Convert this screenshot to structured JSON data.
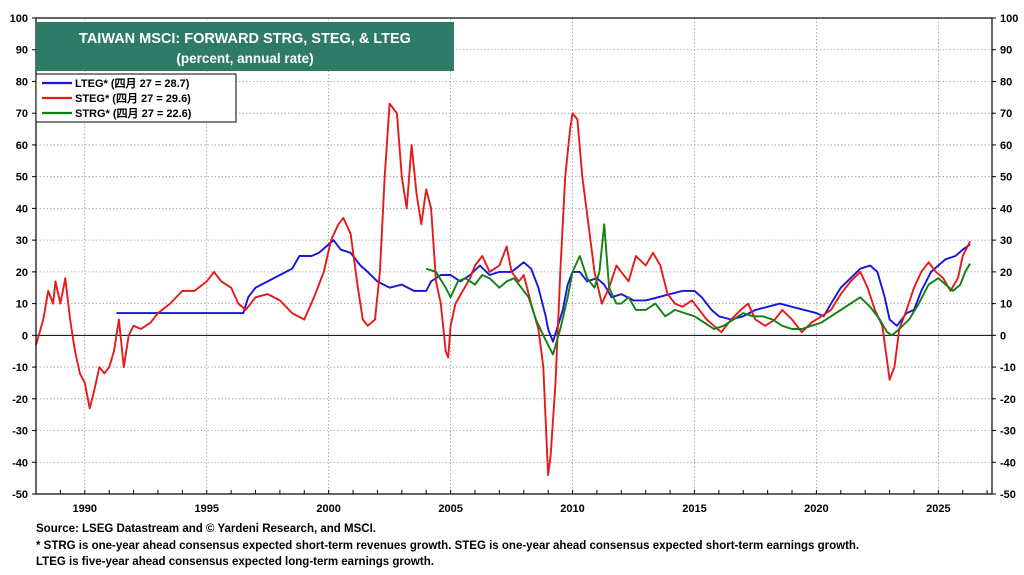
{
  "chart_data": {
    "type": "line",
    "title": "TAIWAN MSCI: FORWARD STRG, STEG, & LTEG",
    "subtitle": "(percent, annual rate)",
    "xlim": [
      1988.0,
      2027.2
    ],
    "ylim": [
      -50,
      100
    ],
    "y_ticks": [
      100,
      90,
      80,
      70,
      60,
      50,
      40,
      30,
      20,
      10,
      0,
      -10,
      -20,
      -30,
      -40,
      -50
    ],
    "x_ticks": [
      1990,
      1995,
      2000,
      2005,
      2010,
      2015,
      2020,
      2025
    ],
    "grid": true,
    "zero_line": true,
    "legend_position": "top-left",
    "series": [
      {
        "name": "LTEG",
        "label": "LTEG* (四月 27 = 28.7)",
        "color": "#1515e0",
        "points": [
          [
            1991.3,
            7
          ],
          [
            1992.0,
            7
          ],
          [
            1996.5,
            7
          ],
          [
            1996.7,
            12
          ],
          [
            1997.0,
            15
          ],
          [
            1997.5,
            17
          ],
          [
            1998.0,
            19
          ],
          [
            1998.5,
            21
          ],
          [
            1998.8,
            25
          ],
          [
            1999.3,
            25
          ],
          [
            1999.6,
            26
          ],
          [
            1999.9,
            28
          ],
          [
            2000.2,
            30
          ],
          [
            2000.5,
            27
          ],
          [
            2000.9,
            26
          ],
          [
            2001.3,
            22
          ],
          [
            2001.6,
            20
          ],
          [
            2002.0,
            17
          ],
          [
            2002.5,
            15
          ],
          [
            2003.0,
            16
          ],
          [
            2003.5,
            14
          ],
          [
            2004.0,
            14
          ],
          [
            2004.2,
            17
          ],
          [
            2004.6,
            19
          ],
          [
            2005.0,
            19
          ],
          [
            2005.4,
            17
          ],
          [
            2005.8,
            19
          ],
          [
            2006.2,
            22
          ],
          [
            2006.6,
            19
          ],
          [
            2007.0,
            20
          ],
          [
            2007.5,
            20
          ],
          [
            2008.0,
            23
          ],
          [
            2008.3,
            21
          ],
          [
            2008.6,
            15
          ],
          [
            2008.9,
            6
          ],
          [
            2009.0,
            2
          ],
          [
            2009.2,
            -2
          ],
          [
            2009.4,
            3
          ],
          [
            2009.6,
            8
          ],
          [
            2009.8,
            16
          ],
          [
            2010.0,
            20
          ],
          [
            2010.3,
            20
          ],
          [
            2010.6,
            17
          ],
          [
            2011.0,
            18
          ],
          [
            2011.3,
            16
          ],
          [
            2011.6,
            12
          ],
          [
            2012.0,
            13
          ],
          [
            2012.5,
            11
          ],
          [
            2013.0,
            11
          ],
          [
            2013.5,
            12
          ],
          [
            2014.0,
            13
          ],
          [
            2014.5,
            14
          ],
          [
            2015.0,
            14
          ],
          [
            2015.3,
            12
          ],
          [
            2015.7,
            8
          ],
          [
            2016.0,
            6
          ],
          [
            2016.5,
            5
          ],
          [
            2017.0,
            6
          ],
          [
            2017.5,
            8
          ],
          [
            2018.0,
            9
          ],
          [
            2018.5,
            10
          ],
          [
            2019.0,
            9
          ],
          [
            2019.5,
            8
          ],
          [
            2020.0,
            7
          ],
          [
            2020.3,
            6
          ],
          [
            2020.6,
            10
          ],
          [
            2021.0,
            15
          ],
          [
            2021.4,
            18
          ],
          [
            2021.8,
            21
          ],
          [
            2022.2,
            22
          ],
          [
            2022.5,
            20
          ],
          [
            2022.8,
            12
          ],
          [
            2023.0,
            5
          ],
          [
            2023.3,
            3
          ],
          [
            2023.7,
            7
          ],
          [
            2024.0,
            8
          ],
          [
            2024.3,
            14
          ],
          [
            2024.7,
            20
          ],
          [
            2025.0,
            22
          ],
          [
            2025.3,
            24
          ],
          [
            2025.7,
            25
          ],
          [
            2026.0,
            27
          ],
          [
            2026.3,
            28.7
          ]
        ]
      },
      {
        "name": "STEG",
        "label": "STEG* (四月 27 = 29.6)",
        "color": "#e51a1a",
        "points": [
          [
            1988.0,
            -3
          ],
          [
            1988.3,
            5
          ],
          [
            1988.5,
            14
          ],
          [
            1988.7,
            10
          ],
          [
            1988.8,
            17
          ],
          [
            1989.0,
            10
          ],
          [
            1989.2,
            18
          ],
          [
            1989.4,
            5
          ],
          [
            1989.6,
            -5
          ],
          [
            1989.8,
            -12
          ],
          [
            1990.0,
            -15
          ],
          [
            1990.2,
            -23
          ],
          [
            1990.4,
            -17
          ],
          [
            1990.6,
            -10
          ],
          [
            1990.8,
            -12
          ],
          [
            1991.0,
            -10
          ],
          [
            1991.2,
            -5
          ],
          [
            1991.4,
            5
          ],
          [
            1991.6,
            -10
          ],
          [
            1991.8,
            0
          ],
          [
            1992.0,
            3
          ],
          [
            1992.3,
            2
          ],
          [
            1992.7,
            4
          ],
          [
            1993.0,
            7
          ],
          [
            1993.5,
            10
          ],
          [
            1994.0,
            14
          ],
          [
            1994.5,
            14
          ],
          [
            1995.0,
            17
          ],
          [
            1995.3,
            20
          ],
          [
            1995.6,
            17
          ],
          [
            1996.0,
            15
          ],
          [
            1996.3,
            10
          ],
          [
            1996.6,
            8
          ],
          [
            1997.0,
            12
          ],
          [
            1997.5,
            13
          ],
          [
            1998.0,
            11
          ],
          [
            1998.5,
            7
          ],
          [
            1999.0,
            5
          ],
          [
            1999.4,
            12
          ],
          [
            1999.8,
            20
          ],
          [
            2000.1,
            30
          ],
          [
            2000.4,
            35
          ],
          [
            2000.6,
            37
          ],
          [
            2000.9,
            32
          ],
          [
            2001.2,
            15
          ],
          [
            2001.4,
            5
          ],
          [
            2001.6,
            3
          ],
          [
            2001.9,
            5
          ],
          [
            2002.1,
            20
          ],
          [
            2002.3,
            50
          ],
          [
            2002.5,
            73
          ],
          [
            2002.8,
            70
          ],
          [
            2003.0,
            50
          ],
          [
            2003.2,
            40
          ],
          [
            2003.4,
            60
          ],
          [
            2003.6,
            45
          ],
          [
            2003.8,
            35
          ],
          [
            2004.0,
            46
          ],
          [
            2004.2,
            40
          ],
          [
            2004.4,
            17
          ],
          [
            2004.6,
            10
          ],
          [
            2004.8,
            -5
          ],
          [
            2004.9,
            -7
          ],
          [
            2005.0,
            3
          ],
          [
            2005.2,
            10
          ],
          [
            2005.5,
            14
          ],
          [
            2005.8,
            18
          ],
          [
            2006.0,
            22
          ],
          [
            2006.3,
            25
          ],
          [
            2006.6,
            20
          ],
          [
            2007.0,
            22
          ],
          [
            2007.3,
            28
          ],
          [
            2007.5,
            20
          ],
          [
            2007.8,
            17
          ],
          [
            2008.0,
            19
          ],
          [
            2008.3,
            10
          ],
          [
            2008.6,
            2
          ],
          [
            2008.8,
            -10
          ],
          [
            2009.0,
            -44
          ],
          [
            2009.1,
            -38
          ],
          [
            2009.3,
            -15
          ],
          [
            2009.5,
            20
          ],
          [
            2009.7,
            50
          ],
          [
            2009.9,
            65
          ],
          [
            2010.0,
            70
          ],
          [
            2010.2,
            68
          ],
          [
            2010.4,
            50
          ],
          [
            2010.6,
            38
          ],
          [
            2010.9,
            20
          ],
          [
            2011.2,
            10
          ],
          [
            2011.5,
            15
          ],
          [
            2011.8,
            22
          ],
          [
            2012.0,
            20
          ],
          [
            2012.3,
            17
          ],
          [
            2012.6,
            25
          ],
          [
            2013.0,
            22
          ],
          [
            2013.3,
            26
          ],
          [
            2013.6,
            22
          ],
          [
            2013.9,
            13
          ],
          [
            2014.2,
            10
          ],
          [
            2014.5,
            9
          ],
          [
            2014.9,
            11
          ],
          [
            2015.2,
            8
          ],
          [
            2015.5,
            5
          ],
          [
            2015.8,
            3
          ],
          [
            2016.1,
            1
          ],
          [
            2016.5,
            5
          ],
          [
            2016.9,
            8
          ],
          [
            2017.2,
            10
          ],
          [
            2017.5,
            5
          ],
          [
            2017.9,
            3
          ],
          [
            2018.3,
            5
          ],
          [
            2018.6,
            8
          ],
          [
            2019.0,
            5
          ],
          [
            2019.4,
            1
          ],
          [
            2019.8,
            4
          ],
          [
            2020.2,
            6
          ],
          [
            2020.6,
            8
          ],
          [
            2021.0,
            13
          ],
          [
            2021.4,
            17
          ],
          [
            2021.8,
            20
          ],
          [
            2022.1,
            15
          ],
          [
            2022.4,
            8
          ],
          [
            2022.7,
            3
          ],
          [
            2022.9,
            -8
          ],
          [
            2023.0,
            -14
          ],
          [
            2023.2,
            -10
          ],
          [
            2023.4,
            2
          ],
          [
            2023.7,
            8
          ],
          [
            2024.0,
            15
          ],
          [
            2024.3,
            20
          ],
          [
            2024.6,
            23
          ],
          [
            2024.9,
            20
          ],
          [
            2025.2,
            18
          ],
          [
            2025.5,
            14
          ],
          [
            2025.8,
            18
          ],
          [
            2026.0,
            25
          ],
          [
            2026.3,
            29.6
          ]
        ]
      },
      {
        "name": "STRG",
        "label": "STRG* (四月 27 = 22.6)",
        "color": "#128012",
        "points": [
          [
            2004.0,
            21
          ],
          [
            2004.4,
            20
          ],
          [
            2004.8,
            15
          ],
          [
            2005.0,
            12
          ],
          [
            2005.3,
            17
          ],
          [
            2005.6,
            18
          ],
          [
            2006.0,
            16
          ],
          [
            2006.3,
            19
          ],
          [
            2006.6,
            18
          ],
          [
            2007.0,
            15
          ],
          [
            2007.3,
            17
          ],
          [
            2007.6,
            18
          ],
          [
            2007.9,
            15
          ],
          [
            2008.2,
            12
          ],
          [
            2008.5,
            5
          ],
          [
            2008.8,
            0
          ],
          [
            2009.0,
            -3
          ],
          [
            2009.2,
            -6
          ],
          [
            2009.5,
            2
          ],
          [
            2009.8,
            12
          ],
          [
            2010.0,
            20
          ],
          [
            2010.3,
            25
          ],
          [
            2010.6,
            18
          ],
          [
            2010.9,
            15
          ],
          [
            2011.1,
            20
          ],
          [
            2011.3,
            35
          ],
          [
            2011.5,
            15
          ],
          [
            2011.8,
            10
          ],
          [
            2012.0,
            10
          ],
          [
            2012.3,
            12
          ],
          [
            2012.6,
            8
          ],
          [
            2013.0,
            8
          ],
          [
            2013.4,
            10
          ],
          [
            2013.8,
            6
          ],
          [
            2014.2,
            8
          ],
          [
            2014.6,
            7
          ],
          [
            2015.0,
            6
          ],
          [
            2015.4,
            4
          ],
          [
            2015.8,
            2
          ],
          [
            2016.2,
            3
          ],
          [
            2016.6,
            5
          ],
          [
            2017.0,
            7
          ],
          [
            2017.4,
            6
          ],
          [
            2017.8,
            6
          ],
          [
            2018.2,
            5
          ],
          [
            2018.6,
            3
          ],
          [
            2019.0,
            2
          ],
          [
            2019.4,
            2
          ],
          [
            2019.8,
            3
          ],
          [
            2020.2,
            4
          ],
          [
            2020.6,
            6
          ],
          [
            2021.0,
            8
          ],
          [
            2021.4,
            10
          ],
          [
            2021.8,
            12
          ],
          [
            2022.2,
            9
          ],
          [
            2022.6,
            5
          ],
          [
            2022.9,
            1
          ],
          [
            2023.1,
            0
          ],
          [
            2023.4,
            2
          ],
          [
            2023.8,
            5
          ],
          [
            2024.2,
            10
          ],
          [
            2024.6,
            16
          ],
          [
            2025.0,
            18
          ],
          [
            2025.3,
            16
          ],
          [
            2025.6,
            14
          ],
          [
            2025.9,
            16
          ],
          [
            2026.1,
            20
          ],
          [
            2026.3,
            22.6
          ]
        ]
      }
    ]
  },
  "footnotes": {
    "source": "Source: LSEG Datastream and © Yardeni Research, and MSCI.",
    "note1": "* STRG is one-year ahead consensus expected short-term revenues growth. STEG is one-year ahead consensus expected short-term earnings growth.",
    "note2": "LTEG is five-year ahead consensus expected long-term earnings growth."
  }
}
